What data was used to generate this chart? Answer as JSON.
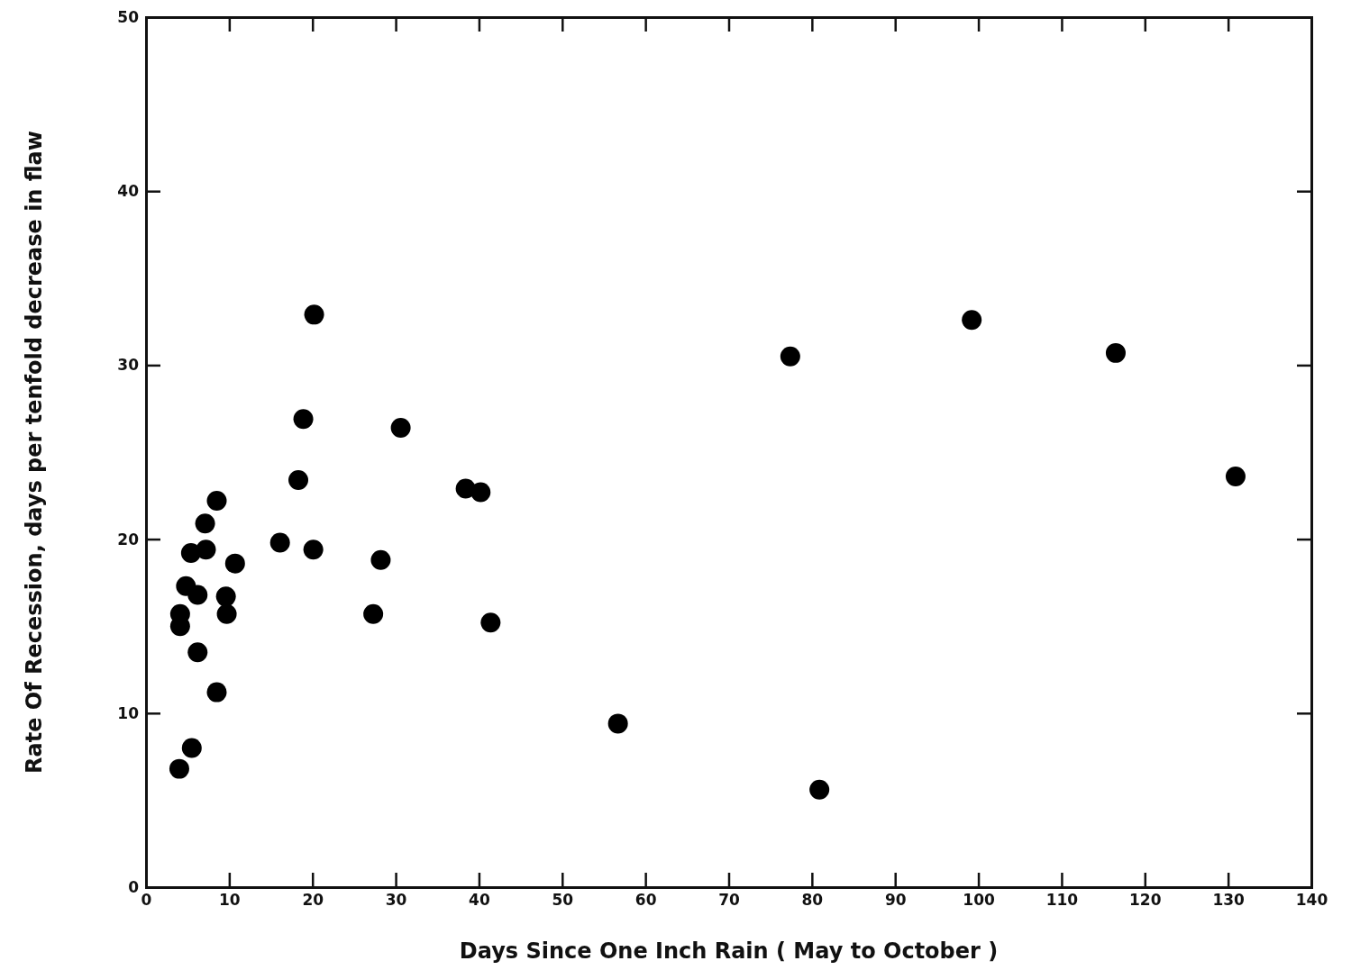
{
  "chart_data": {
    "type": "scatter",
    "xlabel": "Days Since One Inch Rain ( May to October )",
    "ylabel": "Rate Of Recession, days per tenfold decrease in flaw",
    "x": [
      4.0,
      4.1,
      4.1,
      4.8,
      5.4,
      5.5,
      6.2,
      6.2,
      7.1,
      7.2,
      8.5,
      8.5,
      9.6,
      9.7,
      10.7,
      16.1,
      18.3,
      18.9,
      20.1,
      20.2,
      27.3,
      28.2,
      30.6,
      38.4,
      40.2,
      41.4,
      56.7,
      77.4,
      80.9,
      99.2,
      116.5,
      130.9
    ],
    "values": [
      6.8,
      15.0,
      15.7,
      17.3,
      19.2,
      8.0,
      16.8,
      13.5,
      20.9,
      19.4,
      22.2,
      11.2,
      16.7,
      15.7,
      18.6,
      19.8,
      23.4,
      26.9,
      19.4,
      32.9,
      15.7,
      18.8,
      26.4,
      22.9,
      22.7,
      15.2,
      9.4,
      30.5,
      5.6,
      32.6,
      30.7,
      23.6
    ],
    "color": "#000000",
    "marker": "circle",
    "grid": false,
    "xlim": [
      0,
      140
    ],
    "xticks": [
      0,
      10,
      20,
      30,
      40,
      50,
      60,
      70,
      80,
      90,
      100,
      110,
      120,
      130,
      140
    ],
    "ylim": [
      0,
      50
    ],
    "yticks": [
      0,
      10,
      20,
      30,
      40,
      50
    ]
  }
}
